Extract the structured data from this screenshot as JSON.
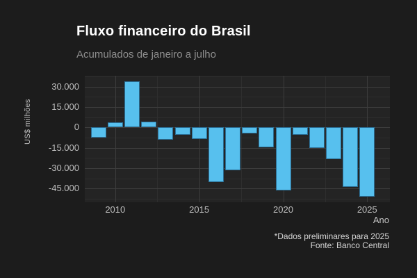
{
  "header": {
    "title": "Fluxo financeiro do Brasil",
    "subtitle": "Acumulados de janeiro a julho"
  },
  "chart_data": {
    "type": "bar",
    "title": "Fluxo financeiro do Brasil",
    "subtitle": "Acumulados de janeiro a julho",
    "xlabel": "Ano",
    "ylabel": "US$ milhões",
    "x": [
      2009,
      2010,
      2011,
      2012,
      2013,
      2014,
      2015,
      2016,
      2017,
      2018,
      2019,
      2020,
      2021,
      2022,
      2023,
      2024,
      2025
    ],
    "values": [
      -7500,
      3700,
      34000,
      4300,
      -9200,
      -5200,
      -8700,
      -40400,
      -31300,
      -4500,
      -14500,
      -46400,
      -5400,
      -15300,
      -23100,
      -43900,
      -50800
    ],
    "ylim": [
      -55000,
      38000
    ],
    "yticks": [
      30000,
      15000,
      0,
      -15000,
      -30000,
      -45000
    ],
    "ytick_labels": [
      "30.000",
      "15.000",
      "0",
      "-15.000",
      "-30.000",
      "-45.000"
    ],
    "minor_yticks": [
      37500,
      22500,
      7500,
      -7500,
      -22500,
      -37500,
      -52500
    ],
    "xticks": [
      2010,
      2015,
      2020,
      2025
    ],
    "xtick_labels": [
      "2010",
      "2015",
      "2020",
      "2025"
    ],
    "minor_xticks": [
      2012.5,
      2017.5,
      2022.5
    ],
    "grid": true,
    "legend": false,
    "bar_color": "#57c0ee",
    "bar_border_color": "#2b6e95",
    "panel_bg": "#242424",
    "figure_bg": "#1c1c1c"
  },
  "footer": {
    "note": "*Dados preliminares para 2025",
    "source": "Fonte: Banco Central"
  }
}
